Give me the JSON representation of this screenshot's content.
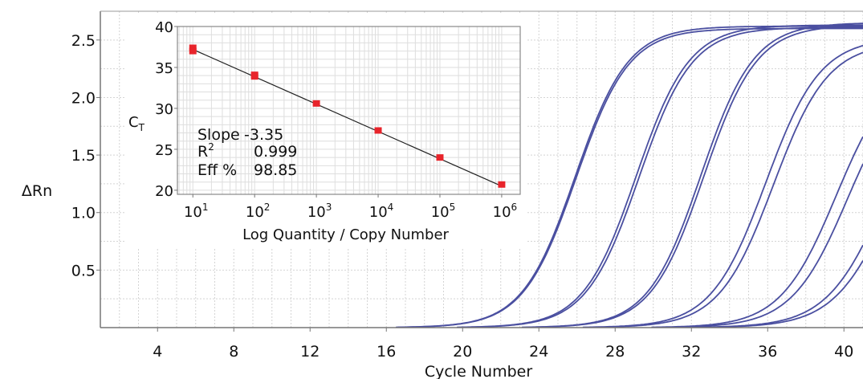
{
  "chart_data": [
    {
      "type": "line",
      "xlabel": "Cycle Number",
      "ylabel": "ΔRn",
      "xlim": [
        1,
        41
      ],
      "ylim": [
        0,
        2.75
      ],
      "xticks": [
        4,
        8,
        12,
        16,
        20,
        24,
        28,
        32,
        36,
        40
      ],
      "yticks": [
        0.5,
        1.0,
        1.5,
        2.0,
        2.5
      ],
      "ytick_labels": [
        "0.5",
        "1.0",
        "1.5",
        "2.0",
        "2.5"
      ],
      "grid": true,
      "line_color": "#4a4fa0",
      "series": [
        {
          "ct": 23.0,
          "plateau": 2.62,
          "slope": 0.72
        },
        {
          "ct": 23.05,
          "plateau": 2.6,
          "slope": 0.72
        },
        {
          "ct": 26.2,
          "plateau": 2.63,
          "slope": 0.72
        },
        {
          "ct": 26.35,
          "plateau": 2.61,
          "slope": 0.72
        },
        {
          "ct": 29.6,
          "plateau": 2.65,
          "slope": 0.72
        },
        {
          "ct": 29.75,
          "plateau": 2.63,
          "slope": 0.72
        },
        {
          "ct": 33.0,
          "plateau": 2.52,
          "slope": 0.7
        },
        {
          "ct": 33.4,
          "plateau": 2.48,
          "slope": 0.7
        },
        {
          "ct": 36.7,
          "plateau": 2.3,
          "slope": 0.68
        },
        {
          "ct": 37.3,
          "plateau": 2.25,
          "slope": 0.68
        },
        {
          "ct": 39.2,
          "plateau": 2.2,
          "slope": 0.66
        },
        {
          "ct": 39.6,
          "plateau": 2.15,
          "slope": 0.66
        }
      ]
    },
    {
      "type": "scatter",
      "xlabel": "Log Quantity / Copy Number",
      "ylabel": "C",
      "ylabel_subscript": "T",
      "ylim": [
        19.5,
        40
      ],
      "yticks": [
        20,
        25,
        30,
        35,
        40
      ],
      "ytick_labels": [
        "20",
        "25",
        "30",
        "35",
        "40"
      ],
      "xticks": [
        1,
        2,
        3,
        4,
        5,
        6
      ],
      "xtick_labels": [
        {
          "base": "10",
          "exp": "1"
        },
        {
          "base": "10",
          "exp": "2"
        },
        {
          "base": "10",
          "exp": "3"
        },
        {
          "base": "10",
          "exp": "4"
        },
        {
          "base": "10",
          "exp": "5"
        },
        {
          "base": "10",
          "exp": "6"
        }
      ],
      "points": [
        {
          "x": 1,
          "y": 37.4
        },
        {
          "x": 1,
          "y": 37.0
        },
        {
          "x": 2,
          "y": 33.9
        },
        {
          "x": 2,
          "y": 34.1
        },
        {
          "x": 3,
          "y": 30.6
        },
        {
          "x": 4,
          "y": 27.3
        },
        {
          "x": 5,
          "y": 24.0
        },
        {
          "x": 6,
          "y": 20.7
        }
      ],
      "fit_line": {
        "x": [
          1,
          6
        ],
        "y": [
          37.2,
          20.5
        ]
      },
      "point_color": "#e8242b",
      "line_color": "#222222",
      "stats": [
        {
          "label": "Slope",
          "value": "-3.35"
        },
        {
          "label": "R",
          "sup": "2",
          "value": "0.999"
        },
        {
          "label": "Eff %",
          "value": "98.85"
        }
      ]
    }
  ]
}
